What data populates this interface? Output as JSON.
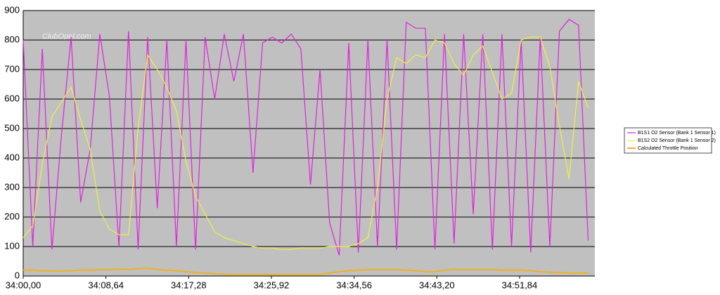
{
  "chart_data": {
    "type": "line",
    "watermark": "ClubOpel.com",
    "x": [
      2040,
      2041,
      2042,
      2043,
      2044,
      2045,
      2046,
      2047,
      2048,
      2049,
      2050,
      2051,
      2052,
      2053,
      2054,
      2055,
      2056,
      2057,
      2058,
      2059,
      2060,
      2061,
      2062,
      2063,
      2064,
      2065,
      2066,
      2067,
      2068,
      2069,
      2070,
      2071,
      2072,
      2073,
      2074,
      2075,
      2076,
      2077,
      2078,
      2079,
      2080,
      2081,
      2082,
      2083,
      2084,
      2085,
      2086,
      2087,
      2088,
      2089,
      2090,
      2091,
      2092,
      2093,
      2094,
      2095,
      2096,
      2097,
      2098,
      2099
    ],
    "series": [
      {
        "name": "B1S1 O2 Sensor (Bank 1 Sensor 1)",
        "color": "#e020e0",
        "values": [
          800,
          100,
          770,
          90,
          480,
          810,
          250,
          430,
          820,
          610,
          100,
          830,
          90,
          810,
          230,
          800,
          100,
          800,
          90,
          810,
          600,
          820,
          660,
          820,
          350,
          790,
          810,
          790,
          820,
          770,
          310,
          700,
          180,
          70,
          790,
          80,
          800,
          100,
          800,
          90,
          860,
          840,
          840,
          90,
          820,
          110,
          820,
          210,
          820,
          90,
          820,
          100,
          800,
          80,
          810,
          100,
          830,
          870,
          850,
          120
        ]
      },
      {
        "name": "B1S2 O2 Sensor (Bank 1 Sensor 2)",
        "color": "#f0f040",
        "values": [
          130,
          170,
          380,
          540,
          590,
          640,
          530,
          430,
          220,
          160,
          140,
          140,
          500,
          750,
          700,
          640,
          560,
          390,
          270,
          210,
          150,
          130,
          120,
          110,
          100,
          95,
          95,
          90,
          90,
          95,
          95,
          95,
          100,
          100,
          100,
          110,
          130,
          300,
          600,
          740,
          720,
          750,
          740,
          800,
          790,
          720,
          680,
          750,
          780,
          690,
          600,
          620,
          800,
          810,
          810,
          710,
          510,
          330,
          660,
          570
        ]
      },
      {
        "name": "Calculated Throttle Position",
        "color": "#f0b020",
        "values": [
          20,
          20,
          18,
          17,
          17,
          18,
          20,
          20,
          22,
          22,
          23,
          22,
          25,
          27,
          22,
          20,
          18,
          15,
          12,
          10,
          8,
          6,
          5,
          5,
          5,
          5,
          5,
          5,
          5,
          5,
          5,
          5,
          10,
          15,
          18,
          20,
          22,
          22,
          22,
          22,
          20,
          18,
          15,
          15,
          20,
          22,
          22,
          22,
          22,
          22,
          20,
          20,
          20,
          18,
          15,
          13,
          12,
          10,
          10,
          10
        ]
      }
    ],
    "xlim": [
      2040,
      2099.7
    ],
    "xticks": [
      {
        "value": 2040,
        "label": "34:00,00"
      },
      {
        "value": 2048.64,
        "label": "34:08,64"
      },
      {
        "value": 2057.28,
        "label": "34:17,28"
      },
      {
        "value": 2065.92,
        "label": "34:25,92"
      },
      {
        "value": 2074.56,
        "label": "34:34,56"
      },
      {
        "value": 2083.2,
        "label": "34:43,20"
      },
      {
        "value": 2091.84,
        "label": "34:51,84"
      }
    ],
    "ylim": [
      0,
      900
    ],
    "yticks": [
      0,
      100,
      200,
      300,
      400,
      500,
      600,
      700,
      800,
      900
    ],
    "grid": true
  }
}
